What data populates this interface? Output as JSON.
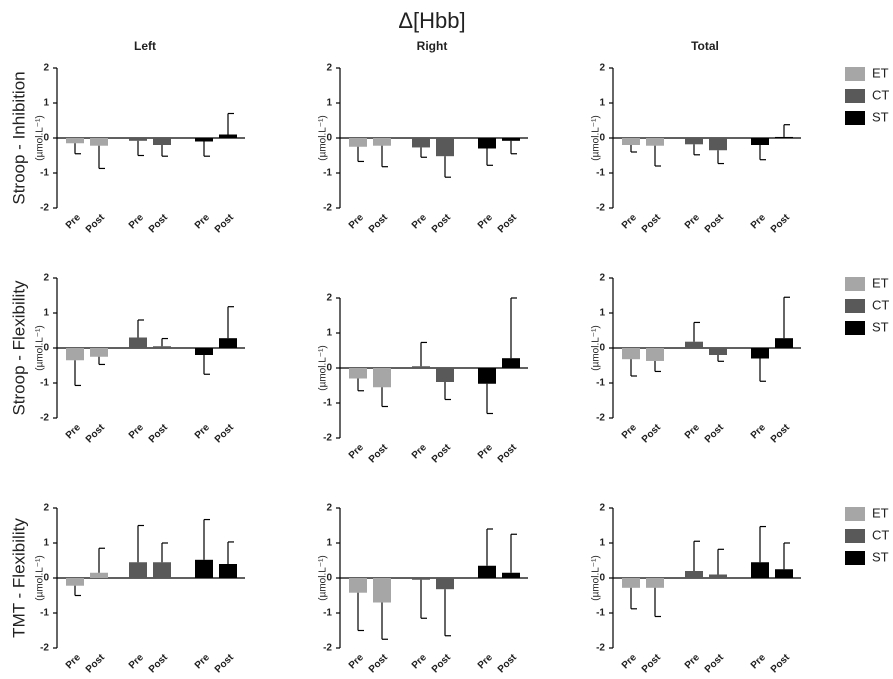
{
  "chart_data": {
    "title": "Δ[Hbb]",
    "columns": [
      "Left",
      "Right",
      "Total"
    ],
    "legend": [
      {
        "name": "ET",
        "color": "#a6a6a6"
      },
      {
        "name": "CT",
        "color": "#595959"
      },
      {
        "name": "ST",
        "color": "#000000"
      }
    ],
    "rows": [
      {
        "label": "Stroop - Inhibition",
        "panels": [
          {
            "type": "bar",
            "ylabel": "(µmol.L⁻¹)",
            "categories": [
              "Pre",
              "Post"
            ],
            "ylim": [
              -2,
              2
            ],
            "yticks": [
              -2,
              -1,
              0,
              1,
              2
            ],
            "series": [
              {
                "values": [
                  -0.15,
                  -0.22
                ],
                "errors": [
                  0.3,
                  0.65
                ]
              },
              {
                "values": [
                  -0.08,
                  -0.2
                ],
                "errors": [
                  0.42,
                  0.32
                ]
              },
              {
                "values": [
                  -0.1,
                  0.1
                ],
                "errors": [
                  0.42,
                  0.6
                ]
              }
            ]
          },
          {
            "type": "bar",
            "ylabel": "(µmol.L⁻¹)",
            "categories": [
              "Pre",
              "Post"
            ],
            "ylim": [
              -2,
              2
            ],
            "yticks": [
              -2,
              -1,
              0,
              1,
              2
            ],
            "series": [
              {
                "values": [
                  -0.25,
                  -0.22
                ],
                "errors": [
                  0.42,
                  0.6
                ]
              },
              {
                "values": [
                  -0.27,
                  -0.52
                ],
                "errors": [
                  0.28,
                  0.6
                ]
              },
              {
                "values": [
                  -0.3,
                  -0.08
                ],
                "errors": [
                  0.48,
                  0.37
                ]
              }
            ]
          },
          {
            "type": "bar",
            "ylabel": "(µmol.L⁻¹)",
            "categories": [
              "Pre",
              "Post"
            ],
            "ylim": [
              -2,
              2
            ],
            "yticks": [
              -2,
              -1,
              0,
              1,
              2
            ],
            "series": [
              {
                "values": [
                  -0.2,
                  -0.22
                ],
                "errors": [
                  0.2,
                  0.58
                ]
              },
              {
                "values": [
                  -0.18,
                  -0.35
                ],
                "errors": [
                  0.3,
                  0.38
                ]
              },
              {
                "values": [
                  -0.2,
                  0.03
                ],
                "errors": [
                  0.42,
                  0.35
                ]
              }
            ]
          }
        ]
      },
      {
        "label": "Stroop - Flexibility",
        "panels": [
          {
            "type": "bar",
            "ylabel": "(µmol.L⁻¹)",
            "categories": [
              "Pre",
              "Post"
            ],
            "ylim": [
              -2,
              2
            ],
            "yticks": [
              -2,
              -1,
              0,
              1,
              2
            ],
            "series": [
              {
                "values": [
                  -0.35,
                  -0.25
                ],
                "errors": [
                  0.72,
                  0.22
                ]
              },
              {
                "values": [
                  0.3,
                  0.05
                ],
                "errors": [
                  0.5,
                  0.22
                ]
              },
              {
                "values": [
                  -0.2,
                  0.28
                ],
                "errors": [
                  0.55,
                  0.9
                ]
              }
            ]
          },
          {
            "type": "bar",
            "ylabel": "(µmol.L⁻¹)",
            "categories": [
              "Pre",
              "Post"
            ],
            "ylim": [
              -2,
              2
            ],
            "yticks": [
              -2,
              -1,
              0,
              1,
              2
            ],
            "series": [
              {
                "values": [
                  -0.3,
                  -0.55
                ],
                "errors": [
                  0.35,
                  0.55
                ]
              },
              {
                "values": [
                  0.05,
                  -0.4
                ],
                "errors": [
                  0.68,
                  0.5
                ]
              },
              {
                "values": [
                  -0.45,
                  0.28
                ],
                "errors": [
                  0.85,
                  1.72
                ]
              }
            ]
          },
          {
            "type": "bar",
            "ylabel": "(µmol.L⁻¹)",
            "categories": [
              "Pre",
              "Post"
            ],
            "ylim": [
              -2,
              2
            ],
            "yticks": [
              -2,
              -1,
              0,
              1,
              2
            ],
            "series": [
              {
                "values": [
                  -0.32,
                  -0.37
                ],
                "errors": [
                  0.48,
                  0.3
                ]
              },
              {
                "values": [
                  0.18,
                  -0.2
                ],
                "errors": [
                  0.55,
                  0.18
                ]
              },
              {
                "values": [
                  -0.3,
                  0.28
                ],
                "errors": [
                  0.65,
                  1.17
                ]
              }
            ]
          }
        ]
      },
      {
        "label": "TMT - Flexibility",
        "panels": [
          {
            "type": "bar",
            "ylabel": "(µmol.L⁻¹)",
            "categories": [
              "Pre",
              "Post"
            ],
            "ylim": [
              -2,
              2
            ],
            "yticks": [
              -2,
              -1,
              0,
              1,
              2
            ],
            "series": [
              {
                "values": [
                  -0.22,
                  0.15
                ],
                "errors": [
                  0.28,
                  0.7
                ]
              },
              {
                "values": [
                  0.45,
                  0.45
                ],
                "errors": [
                  1.05,
                  0.55
                ]
              },
              {
                "values": [
                  0.52,
                  0.4
                ],
                "errors": [
                  1.15,
                  0.63
                ]
              }
            ]
          },
          {
            "type": "bar",
            "ylabel": "(µmol.L⁻¹)",
            "categories": [
              "Pre",
              "Post"
            ],
            "ylim": [
              -2,
              2
            ],
            "yticks": [
              -2,
              -1,
              0,
              1,
              2
            ],
            "series": [
              {
                "values": [
                  -0.42,
                  -0.7
                ],
                "errors": [
                  1.08,
                  1.05
                ]
              },
              {
                "values": [
                  -0.05,
                  -0.32
                ],
                "errors": [
                  1.1,
                  1.33
                ]
              },
              {
                "values": [
                  0.35,
                  0.15
                ],
                "errors": [
                  1.05,
                  1.1
                ]
              }
            ]
          },
          {
            "type": "bar",
            "ylabel": "(µmol.L⁻¹)",
            "categories": [
              "Pre",
              "Post"
            ],
            "ylim": [
              -2,
              2
            ],
            "yticks": [
              -2,
              -1,
              0,
              1,
              2
            ],
            "series": [
              {
                "values": [
                  -0.28,
                  -0.28
                ],
                "errors": [
                  0.6,
                  0.82
                ]
              },
              {
                "values": [
                  0.2,
                  0.1
                ],
                "errors": [
                  0.85,
                  0.72
                ]
              },
              {
                "values": [
                  0.45,
                  0.25
                ],
                "errors": [
                  1.02,
                  0.75
                ]
              }
            ]
          }
        ]
      }
    ]
  }
}
